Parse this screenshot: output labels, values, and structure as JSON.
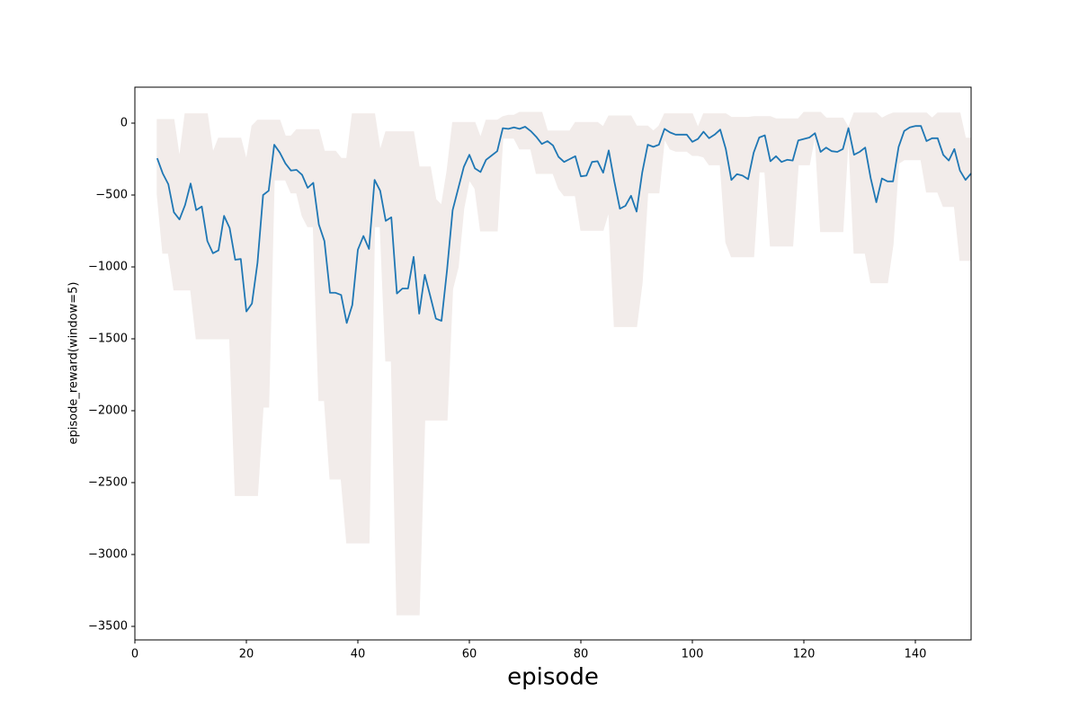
{
  "chart_data": {
    "type": "line",
    "xlabel": "episode",
    "ylabel": "episode_reward(window=5)",
    "xlim": [
      0,
      150
    ],
    "ylim": [
      -3594,
      250
    ],
    "xticks": [
      0,
      20,
      40,
      60,
      80,
      100,
      120,
      140
    ],
    "yticks": [
      {
        "value": -3500,
        "label": "−3500"
      },
      {
        "value": -3000,
        "label": "−3000"
      },
      {
        "value": -2500,
        "label": "−2500"
      },
      {
        "value": -2000,
        "label": "−2000"
      },
      {
        "value": -1500,
        "label": "−1500"
      },
      {
        "value": -1000,
        "label": "−1000"
      },
      {
        "value": -500,
        "label": "−500"
      },
      0
    ],
    "x": [
      4,
      5,
      6,
      7,
      8,
      9,
      10,
      11,
      12,
      13,
      14,
      15,
      16,
      17,
      18,
      19,
      20,
      21,
      22,
      23,
      24,
      25,
      26,
      27,
      28,
      29,
      30,
      31,
      32,
      33,
      34,
      35,
      36,
      37,
      38,
      39,
      40,
      41,
      42,
      43,
      44,
      45,
      46,
      47,
      48,
      49,
      50,
      51,
      52,
      53,
      54,
      55,
      56,
      57,
      58,
      59,
      60,
      61,
      62,
      63,
      64,
      65,
      66,
      67,
      68,
      69,
      70,
      71,
      72,
      73,
      74,
      75,
      76,
      77,
      78,
      79,
      80,
      81,
      82,
      83,
      84,
      85,
      86,
      87,
      88,
      89,
      90,
      91,
      92,
      93,
      94,
      95,
      96,
      97,
      98,
      99,
      100,
      101,
      102,
      103,
      104,
      105,
      106,
      107,
      108,
      109,
      110,
      111,
      112,
      113,
      114,
      115,
      116,
      117,
      118,
      119,
      120,
      121,
      122,
      123,
      124,
      125,
      126,
      127,
      128,
      129,
      130,
      131,
      132,
      133,
      134,
      135,
      136,
      137,
      138,
      139,
      140,
      141,
      142,
      143,
      144,
      145,
      146,
      147,
      148,
      149,
      150
    ],
    "series": [
      {
        "color": "#1f77b4",
        "values": [
          -244,
          -350,
          -425,
          -620,
          -670,
          -570,
          -420,
          -605,
          -580,
          -820,
          -905,
          -885,
          -645,
          -730,
          -950,
          -945,
          -1310,
          -1255,
          -970,
          -500,
          -470,
          -150,
          -205,
          -280,
          -330,
          -325,
          -360,
          -450,
          -415,
          -705,
          -820,
          -1180,
          -1180,
          -1195,
          -1390,
          -1265,
          -880,
          -785,
          -875,
          -395,
          -470,
          -680,
          -655,
          -1185,
          -1150,
          -1150,
          -930,
          -1325,
          -1055,
          -1205,
          -1360,
          -1375,
          -1020,
          -605,
          -455,
          -305,
          -220,
          -315,
          -340,
          -255,
          -225,
          -195,
          -35,
          -40,
          -30,
          -40,
          -25,
          -55,
          -95,
          -145,
          -125,
          -155,
          -235,
          -270,
          -250,
          -230,
          -370,
          -365,
          -270,
          -265,
          -345,
          -190,
          -405,
          -595,
          -575,
          -505,
          -615,
          -345,
          -150,
          -165,
          -150,
          -40,
          -65,
          -80,
          -80,
          -80,
          -130,
          -110,
          -60,
          -105,
          -80,
          -45,
          -180,
          -395,
          -355,
          -365,
          -390,
          -205,
          -100,
          -85,
          -265,
          -230,
          -270,
          -255,
          -260,
          -120,
          -110,
          -100,
          -70,
          -200,
          -170,
          -195,
          -200,
          -180,
          -35,
          -220,
          -200,
          -170,
          -385,
          -550,
          -385,
          -405,
          -405,
          -165,
          -55,
          -30,
          -20,
          -20,
          -125,
          -105,
          -105,
          -220,
          -260,
          -180,
          -330,
          -395,
          -350
        ]
      }
    ],
    "band": {
      "color": "#f2ecea",
      "upper": [
        25,
        25,
        25,
        25,
        -240,
        65,
        65,
        65,
        65,
        65,
        -205,
        -105,
        -105,
        -105,
        -105,
        -105,
        -255,
        -20,
        20,
        20,
        20,
        20,
        20,
        -90,
        -90,
        -45,
        -45,
        -45,
        -45,
        -45,
        -195,
        -195,
        -195,
        -245,
        -245,
        65,
        65,
        65,
        65,
        65,
        -190,
        -60,
        -60,
        -60,
        -60,
        -60,
        -60,
        -305,
        -305,
        -305,
        -530,
        -570,
        -330,
        5,
        5,
        5,
        5,
        5,
        -100,
        20,
        20,
        20,
        45,
        55,
        55,
        75,
        75,
        75,
        75,
        75,
        -55,
        -55,
        -55,
        -55,
        -55,
        5,
        5,
        5,
        5,
        5,
        -25,
        50,
        50,
        50,
        50,
        50,
        -20,
        -20,
        -20,
        -55,
        -20,
        65,
        65,
        65,
        65,
        65,
        65,
        -30,
        65,
        65,
        65,
        65,
        65,
        40,
        40,
        40,
        40,
        45,
        45,
        45,
        45,
        30,
        30,
        30,
        30,
        30,
        75,
        75,
        75,
        75,
        35,
        35,
        35,
        35,
        -30,
        70,
        70,
        70,
        70,
        70,
        35,
        55,
        70,
        70,
        70,
        70,
        70,
        70,
        70,
        35,
        70,
        70,
        70,
        70,
        70,
        -105,
        -105
      ],
      "lower": [
        -495,
        -905,
        -905,
        -1160,
        -1160,
        -1160,
        -1160,
        -1500,
        -1500,
        -1500,
        -1500,
        -1500,
        -1500,
        -1500,
        -2590,
        -2590,
        -2590,
        -2590,
        -2590,
        -1975,
        -1975,
        -395,
        -395,
        -395,
        -485,
        -485,
        -645,
        -720,
        -720,
        -1930,
        -1930,
        -2475,
        -2475,
        -2475,
        -2920,
        -2920,
        -2920,
        -2920,
        -2920,
        -720,
        -720,
        -1655,
        -1655,
        -3420,
        -3420,
        -3420,
        -3420,
        -3420,
        -2065,
        -2065,
        -2065,
        -2065,
        -2065,
        -1155,
        -1000,
        -595,
        -395,
        -455,
        -750,
        -750,
        -750,
        -750,
        -105,
        -105,
        -105,
        -180,
        -180,
        -180,
        -350,
        -350,
        -350,
        -350,
        -455,
        -505,
        -505,
        -505,
        -745,
        -745,
        -745,
        -745,
        -745,
        -615,
        -1415,
        -1415,
        -1415,
        -1415,
        -1415,
        -1110,
        -485,
        -485,
        -485,
        -110,
        -180,
        -195,
        -195,
        -195,
        -225,
        -225,
        -235,
        -290,
        -290,
        -290,
        -830,
        -930,
        -930,
        -930,
        -930,
        -930,
        -340,
        -340,
        -855,
        -855,
        -855,
        -855,
        -855,
        -290,
        -290,
        -290,
        -80,
        -755,
        -755,
        -755,
        -755,
        -755,
        -80,
        -905,
        -905,
        -905,
        -1110,
        -1110,
        -1110,
        -1110,
        -845,
        -280,
        -255,
        -255,
        -255,
        -255,
        -480,
        -480,
        -480,
        -580,
        -580,
        -580,
        -955,
        -955,
        -955
      ]
    }
  }
}
